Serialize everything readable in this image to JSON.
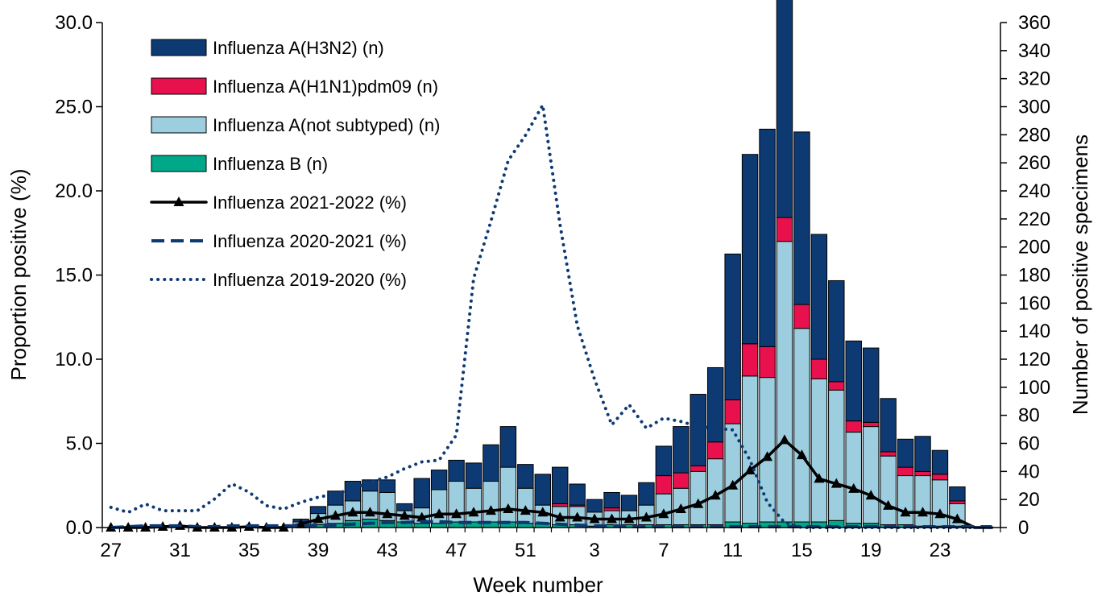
{
  "chart_data": {
    "type": "bar",
    "title": "",
    "xlabel": "Week number",
    "ylabel_left": "Proportion positive (%)",
    "ylabel_right": "Number of positive specimens",
    "ylim_left": [
      0,
      30
    ],
    "ylim_right": [
      0,
      360
    ],
    "left_ticks": [
      "0.0",
      "5.0",
      "10.0",
      "15.0",
      "20.0",
      "25.0",
      "30.0"
    ],
    "right_ticks": [
      "0",
      "20",
      "40",
      "60",
      "80",
      "100",
      "120",
      "140",
      "160",
      "180",
      "200",
      "220",
      "240",
      "260",
      "280",
      "300",
      "320",
      "340",
      "360"
    ],
    "weeks": [
      27,
      28,
      29,
      30,
      31,
      32,
      33,
      34,
      35,
      36,
      37,
      38,
      39,
      40,
      41,
      42,
      43,
      44,
      45,
      46,
      47,
      48,
      49,
      50,
      51,
      52,
      1,
      2,
      3,
      4,
      5,
      6,
      7,
      8,
      9,
      10,
      11,
      12,
      13,
      14,
      15,
      16,
      17,
      18,
      19,
      20,
      21,
      22,
      23,
      24,
      25,
      26
    ],
    "x_tick_labels": [
      "27",
      "31",
      "35",
      "39",
      "43",
      "47",
      "51",
      "3",
      "7",
      "11",
      "15",
      "19",
      "23"
    ],
    "x_tick_weeks": [
      27,
      31,
      35,
      39,
      43,
      47,
      51,
      3,
      7,
      11,
      15,
      19,
      23
    ],
    "bar_series": [
      {
        "name": "Influenza A(H3N2) (n)",
        "color": "#0E3A73",
        "values": [
          0,
          0,
          0,
          0,
          0,
          0,
          0,
          0,
          0,
          0,
          0,
          2,
          5,
          10,
          14,
          8,
          9,
          5,
          21,
          14,
          15,
          18,
          26,
          29,
          17,
          22,
          26,
          15,
          9,
          11,
          11,
          16,
          21,
          33,
          51,
          53,
          104,
          135,
          155,
          165,
          123,
          89,
          72,
          57,
          53,
          38,
          20,
          25,
          17,
          10,
          0,
          0
        ]
      },
      {
        "name": "Influenza A(H1N1)pdm09 (n)",
        "color": "#E8104D",
        "values": [
          0,
          0,
          0,
          0,
          0,
          0,
          0,
          0,
          0,
          0,
          0,
          0,
          0,
          0,
          0,
          0,
          0,
          0,
          0,
          0,
          0,
          0,
          0,
          0,
          0,
          0,
          2,
          1,
          0,
          2,
          0,
          0,
          13,
          11,
          4,
          12,
          17,
          23,
          22,
          17,
          17,
          14,
          6,
          8,
          3,
          3,
          6,
          3,
          4,
          2,
          0,
          0
        ]
      },
      {
        "name": "Influenza A(not subtyped) (n)",
        "color": "#9DCEDF",
        "values": [
          0,
          0,
          0,
          0,
          0,
          0,
          0,
          0,
          0,
          0,
          0,
          3,
          8,
          13,
          14,
          20,
          20,
          8,
          11,
          24,
          29,
          24,
          29,
          39,
          25,
          13,
          13,
          13,
          10,
          10,
          10,
          14,
          22,
          26,
          38,
          47,
          70,
          105,
          103,
          200,
          138,
          102,
          93,
          65,
          69,
          49,
          35,
          36,
          33,
          16,
          0,
          0
        ]
      },
      {
        "name": "Influenza B (n)",
        "color": "#00A88A",
        "values": [
          0,
          0,
          0,
          0,
          0,
          0,
          0,
          0,
          0,
          0,
          0,
          1,
          2,
          3,
          5,
          6,
          5,
          4,
          3,
          3,
          4,
          4,
          4,
          4,
          3,
          3,
          2,
          2,
          1,
          2,
          2,
          2,
          2,
          2,
          2,
          2,
          4,
          3,
          4,
          4,
          4,
          4,
          5,
          3,
          3,
          2,
          2,
          1,
          1,
          1,
          0,
          0
        ]
      }
    ],
    "line_series": [
      {
        "name": "Influenza 2021-2022 (%)",
        "color": "#000000",
        "style": "solid-triangle",
        "values": [
          0,
          0,
          0,
          0.05,
          0.1,
          0,
          0,
          0,
          0.05,
          0,
          0,
          0.2,
          0.5,
          0.7,
          0.9,
          0.9,
          0.8,
          0.7,
          0.6,
          0.8,
          0.8,
          0.9,
          1.0,
          1.1,
          1.0,
          0.9,
          0.6,
          0.6,
          0.5,
          0.5,
          0.5,
          0.6,
          0.8,
          1.1,
          1.4,
          1.9,
          2.5,
          3.4,
          4.2,
          5.2,
          4.3,
          2.9,
          2.6,
          2.3,
          1.9,
          1.3,
          0.9,
          0.9,
          0.8,
          0.5,
          0,
          0
        ]
      },
      {
        "name": "Influenza 2020-2021 (%)",
        "color": "#0E3A73",
        "style": "dashed",
        "values": [
          0,
          0.05,
          0.1,
          0.1,
          0.1,
          0.05,
          0.05,
          0.1,
          0.1,
          0.1,
          0.1,
          0.1,
          0.15,
          0.15,
          0.2,
          0.25,
          0.3,
          0.3,
          0.35,
          0.35,
          0.3,
          0.3,
          0.3,
          0.3,
          0.3,
          0.25,
          0.2,
          0.15,
          0.1,
          0.1,
          0.05,
          0.05,
          0.05,
          0.05,
          0.05,
          0.05,
          0.05,
          0.05,
          0.05,
          0.05,
          0.05,
          0.05,
          0.05,
          0.05,
          0.05,
          0.05,
          0.05,
          0.05,
          0.05,
          0.05,
          0.05,
          0.05
        ]
      },
      {
        "name": "Influenza 2019-2020 (%)",
        "color": "#0E3A73",
        "style": "dotted",
        "values": [
          1.2,
          0.9,
          1.4,
          1.0,
          1.0,
          1.0,
          1.7,
          2.6,
          2.1,
          1.3,
          1.1,
          1.5,
          1.8,
          2.0,
          2.3,
          2.7,
          3.0,
          3.5,
          3.9,
          4.0,
          5.5,
          14.8,
          18.2,
          21.8,
          23.3,
          25.1,
          18.0,
          12.0,
          8.8,
          6.1,
          7.3,
          5.9,
          6.5,
          6.3,
          6.0,
          5.9,
          5.8,
          4.0,
          1.5,
          0.3,
          0,
          0,
          0,
          0,
          0,
          0,
          0,
          0,
          0,
          0,
          0,
          0
        ]
      }
    ],
    "legend_position": "top-left",
    "grid": false
  }
}
